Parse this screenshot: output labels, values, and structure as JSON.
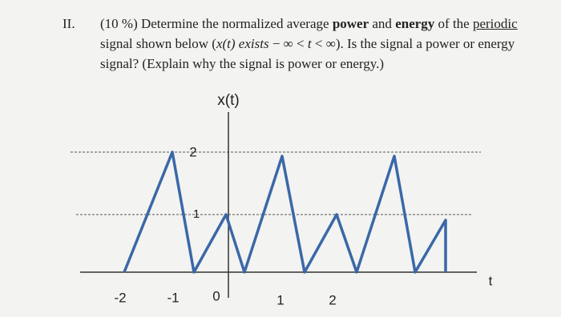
{
  "header": {
    "number": "II."
  },
  "question": {
    "lines": [
      [
        "(10 %) Determine the normalized average ",
        "power",
        " and ",
        "energy",
        " of the ",
        "periodic"
      ],
      [
        "signal shown below (",
        "x(t) exists",
        " − ∞ < ",
        "t",
        " < ∞). Is the signal a power or energy"
      ],
      [
        "signal? (Explain why the signal is power or energy.)"
      ]
    ]
  },
  "figure": {
    "y_label": "x(t)",
    "x_label": "t",
    "x_tick_labels": [
      "-2",
      "-1",
      "0",
      "1",
      "2"
    ],
    "level_labels": [
      "2",
      "1"
    ]
  }
}
